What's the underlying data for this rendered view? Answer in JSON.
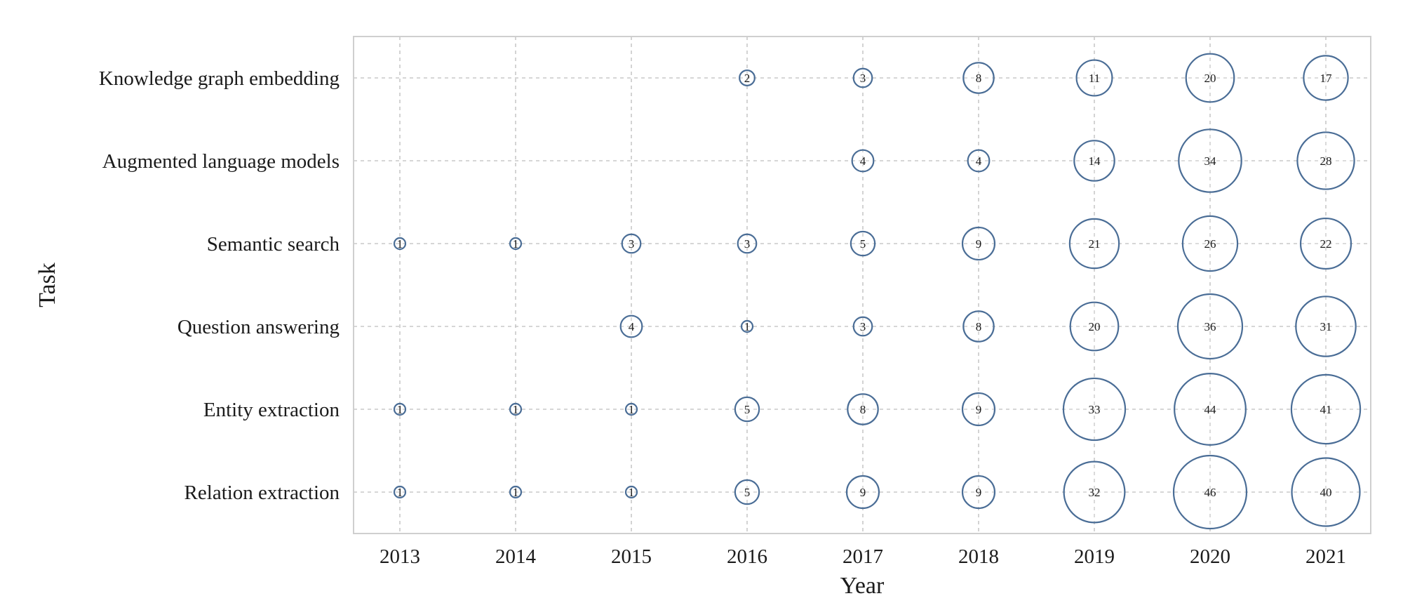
{
  "chart_data": {
    "type": "scatter",
    "subtype": "bubble",
    "title": "",
    "xlabel": "Year",
    "ylabel": "Task",
    "x_categories": [
      "2013",
      "2014",
      "2015",
      "2016",
      "2017",
      "2018",
      "2019",
      "2020",
      "2021"
    ],
    "y_categories": [
      "Knowledge graph embedding",
      "Augmented language models",
      "Semantic search",
      "Question answering",
      "Entity extraction",
      "Relation extraction"
    ],
    "grid": true,
    "legend": "none",
    "colors": {
      "bubble_stroke": "#4a6d96",
      "grid": "#c8c8c8",
      "frame": "#cfcfcf",
      "text": "#1b1b1b"
    },
    "points": [
      {
        "task": "Knowledge graph embedding",
        "year": "2016",
        "value": 2
      },
      {
        "task": "Knowledge graph embedding",
        "year": "2017",
        "value": 3
      },
      {
        "task": "Knowledge graph embedding",
        "year": "2018",
        "value": 8
      },
      {
        "task": "Knowledge graph embedding",
        "year": "2019",
        "value": 11
      },
      {
        "task": "Knowledge graph embedding",
        "year": "2020",
        "value": 20
      },
      {
        "task": "Knowledge graph embedding",
        "year": "2021",
        "value": 17
      },
      {
        "task": "Augmented language models",
        "year": "2017",
        "value": 4
      },
      {
        "task": "Augmented language models",
        "year": "2018",
        "value": 4
      },
      {
        "task": "Augmented language models",
        "year": "2019",
        "value": 14
      },
      {
        "task": "Augmented language models",
        "year": "2020",
        "value": 34
      },
      {
        "task": "Augmented language models",
        "year": "2021",
        "value": 28
      },
      {
        "task": "Semantic search",
        "year": "2013",
        "value": 1
      },
      {
        "task": "Semantic search",
        "year": "2014",
        "value": 1
      },
      {
        "task": "Semantic search",
        "year": "2015",
        "value": 3
      },
      {
        "task": "Semantic search",
        "year": "2016",
        "value": 3
      },
      {
        "task": "Semantic search",
        "year": "2017",
        "value": 5
      },
      {
        "task": "Semantic search",
        "year": "2018",
        "value": 9
      },
      {
        "task": "Semantic search",
        "year": "2019",
        "value": 21
      },
      {
        "task": "Semantic search",
        "year": "2020",
        "value": 26
      },
      {
        "task": "Semantic search",
        "year": "2021",
        "value": 22
      },
      {
        "task": "Question answering",
        "year": "2015",
        "value": 4
      },
      {
        "task": "Question answering",
        "year": "2016",
        "value": 1
      },
      {
        "task": "Question answering",
        "year": "2017",
        "value": 3
      },
      {
        "task": "Question answering",
        "year": "2018",
        "value": 8
      },
      {
        "task": "Question answering",
        "year": "2019",
        "value": 20
      },
      {
        "task": "Question answering",
        "year": "2020",
        "value": 36
      },
      {
        "task": "Question answering",
        "year": "2021",
        "value": 31
      },
      {
        "task": "Entity extraction",
        "year": "2013",
        "value": 1
      },
      {
        "task": "Entity extraction",
        "year": "2014",
        "value": 1
      },
      {
        "task": "Entity extraction",
        "year": "2015",
        "value": 1
      },
      {
        "task": "Entity extraction",
        "year": "2016",
        "value": 5
      },
      {
        "task": "Entity extraction",
        "year": "2017",
        "value": 8
      },
      {
        "task": "Entity extraction",
        "year": "2018",
        "value": 9
      },
      {
        "task": "Entity extraction",
        "year": "2019",
        "value": 33
      },
      {
        "task": "Entity extraction",
        "year": "2020",
        "value": 44
      },
      {
        "task": "Entity extraction",
        "year": "2021",
        "value": 41
      },
      {
        "task": "Relation extraction",
        "year": "2013",
        "value": 1
      },
      {
        "task": "Relation extraction",
        "year": "2014",
        "value": 1
      },
      {
        "task": "Relation extraction",
        "year": "2015",
        "value": 1
      },
      {
        "task": "Relation extraction",
        "year": "2016",
        "value": 5
      },
      {
        "task": "Relation extraction",
        "year": "2017",
        "value": 9
      },
      {
        "task": "Relation extraction",
        "year": "2018",
        "value": 9
      },
      {
        "task": "Relation extraction",
        "year": "2019",
        "value": 32
      },
      {
        "task": "Relation extraction",
        "year": "2020",
        "value": 46
      },
      {
        "task": "Relation extraction",
        "year": "2021",
        "value": 40
      }
    ]
  }
}
